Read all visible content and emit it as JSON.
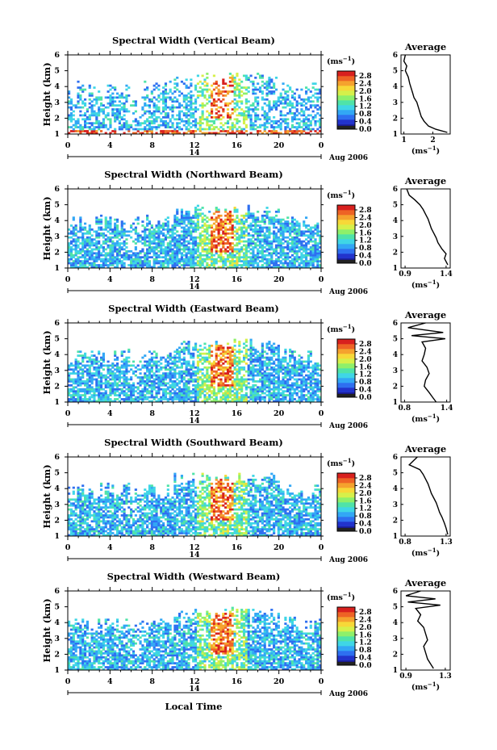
{
  "figure": {
    "xaxis_title": "Local Time"
  },
  "common": {
    "ylabel": "Height (km)",
    "y_ticks": [
      "1",
      "2",
      "3",
      "4",
      "5",
      "6"
    ],
    "x_ticks": [
      "0",
      "4",
      "8",
      "12",
      "16",
      "20",
      "0"
    ],
    "date_day": "14",
    "date_label": "Aug 2006",
    "cbar_unit": "(ms",
    "cbar_unit_exp": "−1",
    "cbar_unit_close": ")",
    "cbar_ticks": [
      "0.0",
      "0.4",
      "0.8",
      "1.2",
      "1.6",
      "2.0",
      "2.4",
      "2.8"
    ],
    "cbar_colors": [
      "#1a1a8c",
      "#2233cc",
      "#2e6ff0",
      "#32a7f5",
      "#3fd6e6",
      "#4fe3a8",
      "#8ef06a",
      "#d6f04a",
      "#f7d838",
      "#f5a22e",
      "#ee6325",
      "#d8201e"
    ],
    "avg_title": "Average",
    "avg_xlabel_base": "(ms",
    "avg_xlabel_exp": "−1",
    "avg_xlabel_close": ")"
  },
  "chart_data": [
    {
      "type": "heatmap",
      "title": "Spectral Width (Vertical Beam)",
      "x_range": [
        0,
        24
      ],
      "ylim": [
        1,
        6
      ],
      "colorbar_range": [
        0,
        2.8
      ],
      "average": {
        "type": "line",
        "title": "Average",
        "x_ticks": [
          "1",
          "2"
        ],
        "xlim": [
          0.9,
          2.6
        ],
        "ylim": [
          1,
          6
        ],
        "x": [
          1.05,
          1.0,
          1.1,
          1.05,
          1.15,
          1.2,
          1.25,
          1.3,
          1.35,
          1.45,
          1.5,
          1.55,
          1.6,
          1.7,
          1.85,
          2.1,
          2.5
        ],
        "y": [
          6.0,
          5.6,
          5.3,
          5.0,
          4.6,
          4.2,
          3.9,
          3.6,
          3.3,
          3.0,
          2.7,
          2.4,
          2.1,
          1.8,
          1.5,
          1.3,
          1.1
        ]
      }
    },
    {
      "type": "heatmap",
      "title": "Spectral Width (Northward Beam)",
      "x_range": [
        0,
        24
      ],
      "ylim": [
        1,
        6
      ],
      "colorbar_range": [
        0,
        2.8
      ],
      "average": {
        "type": "line",
        "title": "Average",
        "x_ticks": [
          "0.9",
          "1.4"
        ],
        "xlim": [
          0.85,
          1.45
        ],
        "ylim": [
          1,
          6
        ],
        "x": [
          0.92,
          0.95,
          1.02,
          1.08,
          1.12,
          1.15,
          1.18,
          1.2,
          1.22,
          1.25,
          1.28,
          1.3,
          1.35,
          1.4,
          1.38,
          1.42
        ],
        "y": [
          6.0,
          5.6,
          5.3,
          5.0,
          4.7,
          4.4,
          4.1,
          3.8,
          3.5,
          3.2,
          2.9,
          2.6,
          2.2,
          1.9,
          1.6,
          1.2
        ]
      }
    },
    {
      "type": "heatmap",
      "title": "Spectral Width (Eastward Beam)",
      "x_range": [
        0,
        24
      ],
      "ylim": [
        1,
        6
      ],
      "colorbar_range": [
        0,
        2.8
      ],
      "average": {
        "type": "line",
        "title": "Average",
        "x_ticks": [
          "0.8",
          "1.4"
        ],
        "xlim": [
          0.75,
          1.45
        ],
        "ylim": [
          1,
          6
        ],
        "x": [
          1.1,
          0.85,
          1.35,
          0.9,
          1.38,
          1.05,
          1.1,
          1.08,
          1.05,
          1.12,
          1.15,
          1.1,
          1.08,
          1.15,
          1.2,
          1.25
        ],
        "y": [
          6.0,
          5.7,
          5.4,
          5.2,
          5.0,
          4.8,
          4.4,
          4.0,
          3.6,
          3.2,
          2.8,
          2.4,
          2.0,
          1.6,
          1.3,
          1.0
        ]
      }
    },
    {
      "type": "heatmap",
      "title": "Spectral Width (Southward Beam)",
      "x_range": [
        0,
        24
      ],
      "ylim": [
        1,
        6
      ],
      "colorbar_range": [
        0,
        2.8
      ],
      "average": {
        "type": "line",
        "title": "Average",
        "x_ticks": [
          "0.8",
          "1.3"
        ],
        "xlim": [
          0.75,
          1.35
        ],
        "ylim": [
          1,
          6
        ],
        "x": [
          0.95,
          0.85,
          0.98,
          1.02,
          1.05,
          1.08,
          1.1,
          1.12,
          1.15,
          1.18,
          1.2,
          1.22,
          1.25,
          1.28,
          1.3,
          1.32
        ],
        "y": [
          6.0,
          5.5,
          5.2,
          4.9,
          4.6,
          4.3,
          4.0,
          3.7,
          3.4,
          3.1,
          2.8,
          2.5,
          2.2,
          1.8,
          1.5,
          1.1
        ]
      }
    },
    {
      "type": "heatmap",
      "title": "Spectral Width (Westward Beam)",
      "x_range": [
        0,
        24
      ],
      "ylim": [
        1,
        6
      ],
      "colorbar_range": [
        0,
        2.8
      ],
      "average": {
        "type": "line",
        "title": "Average",
        "x_ticks": [
          "0.9",
          "1.3"
        ],
        "xlim": [
          0.85,
          1.35
        ],
        "ylim": [
          1,
          6
        ],
        "x": [
          1.05,
          0.9,
          1.2,
          0.92,
          1.25,
          1.0,
          1.05,
          1.02,
          1.08,
          1.1,
          1.12,
          1.08,
          1.1,
          1.12,
          1.15,
          1.18
        ],
        "y": [
          6.0,
          5.7,
          5.5,
          5.3,
          5.1,
          4.9,
          4.5,
          4.1,
          3.7,
          3.3,
          2.9,
          2.5,
          2.1,
          1.7,
          1.4,
          1.1
        ]
      }
    }
  ]
}
